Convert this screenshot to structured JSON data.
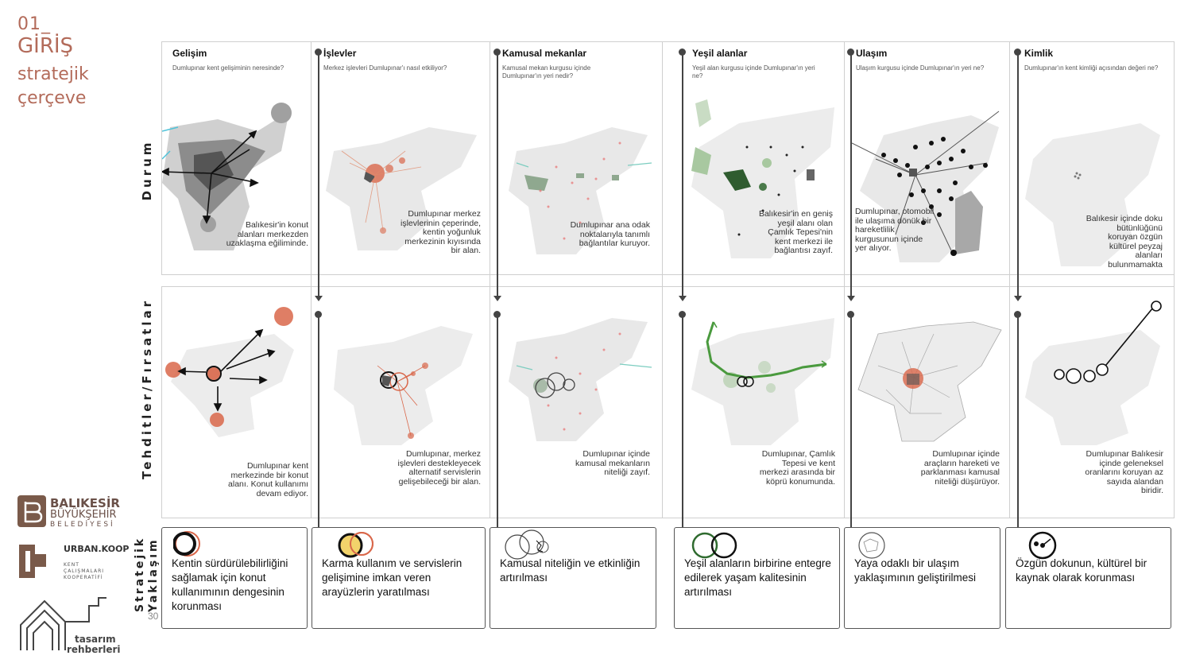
{
  "brand": {
    "num": "01_",
    "title": "GİRİŞ",
    "sub1": "stratejik",
    "sub2": "çerçeve",
    "color": "#b36b5a"
  },
  "rows": {
    "durum": "Durum",
    "tehdit": "Tehditler/Fırsatlar",
    "strat1": "Stratejik",
    "strat2": "Yaklaşım"
  },
  "columns": [
    {
      "title": "Gelişim",
      "question": "Dumlupınar kent gelişiminin neresinde?",
      "durum": "Balıkesir'in konut alanları merkezden uzaklaşma eğiliminde.",
      "tehdit": "Dumlupınar kent merkezinde bir konut alanı. Konut kullanımı devam ediyor.",
      "strategy": "Kentin sürdürülebilirliğini sağlamak için konut kullanımının dengesinin korunması"
    },
    {
      "title": "İşlevler",
      "question": "Merkez işlevleri Dumlupınar'ı nasıl etkiliyor?",
      "durum": "Dumlupınar merkez işlevlerinin çeperinde, kentin yoğunluk merkezinin kıyısında bir alan.",
      "tehdit": "Dumlupınar, merkez işlevleri destekleyecek alternatif servislerin gelişebileceği bir alan.",
      "strategy": "Karma kullanım ve servislerin gelişimine imkan veren arayüzlerin yaratılması"
    },
    {
      "title": "Kamusal mekanlar",
      "question": "Kamusal mekan kurgusu içinde Dumlupınar'ın yeri nedir?",
      "durum": "Dumlupınar ana odak noktalarıyla tanımlı bağlantılar kuruyor.",
      "tehdit": "Dumlupınar içinde kamusal mekanların niteliği zayıf.",
      "strategy": "Kamusal niteliğin ve etkinliğin artırılması"
    },
    {
      "title": "Yeşil alanlar",
      "question": "Yeşil alan kurgusu içinde Dumlupınar'ın yeri ne?",
      "durum": "Balıkesir'in en geniş yeşil alanı olan Çamlık Tepesi'nin kent merkezi ile bağlantısı zayıf.",
      "tehdit": "Dumlupınar, Çamlık Tepesi ve kent merkezi arasında bir köprü konumunda.",
      "strategy": "Yeşil alanların birbirine entegre edilerek yaşam kalitesinin artırılması"
    },
    {
      "title": "Ulaşım",
      "question": "Ulaşım kurgusu içinde Dumlupınar'ın yeri ne?",
      "durum": "Dumlupınar, otomobil ile ulaşıma dönük bir hareketlilik kurgusunun içinde yer alıyor.",
      "tehdit": "Dumlupınar içinde araçların hareketi ve parklanması kamusal niteliği düşürüyor.",
      "strategy": "Yaya odaklı bir ulaşım yaklaşımının geliştirilmesi"
    },
    {
      "title": "Kimlik",
      "question": "Dumlupınar'ın kent kimliği açısından değeri ne?",
      "durum": "Balıkesir içinde doku bütünlüğünü koruyan özgün kültürel peyzaj alanları bulunmamakta",
      "tehdit": "Dumlupınar Balıkesir içinde geleneksel oranlarını koruyan az sayıda alandan biridir.",
      "strategy": "Özgün dokunun, kültürel bir kaynak olarak korunması"
    }
  ],
  "page": "30",
  "logos": {
    "bb1": "BALIKESİR",
    "bb2": "BÜYÜKŞEHİR",
    "bb3": "BELEDİYESİ",
    "uk1": "URBAN.KOOP",
    "uk2": "KENT",
    "uk3": "ÇALIŞMALARI",
    "uk4": "KOOPERATİFİ",
    "tr1": "tasarım",
    "tr2": "rehberleri"
  },
  "colors": {
    "accent": "#d9674a",
    "green": "#4a9a3e",
    "gray": "#e6e6e6",
    "dark": "#444444"
  }
}
